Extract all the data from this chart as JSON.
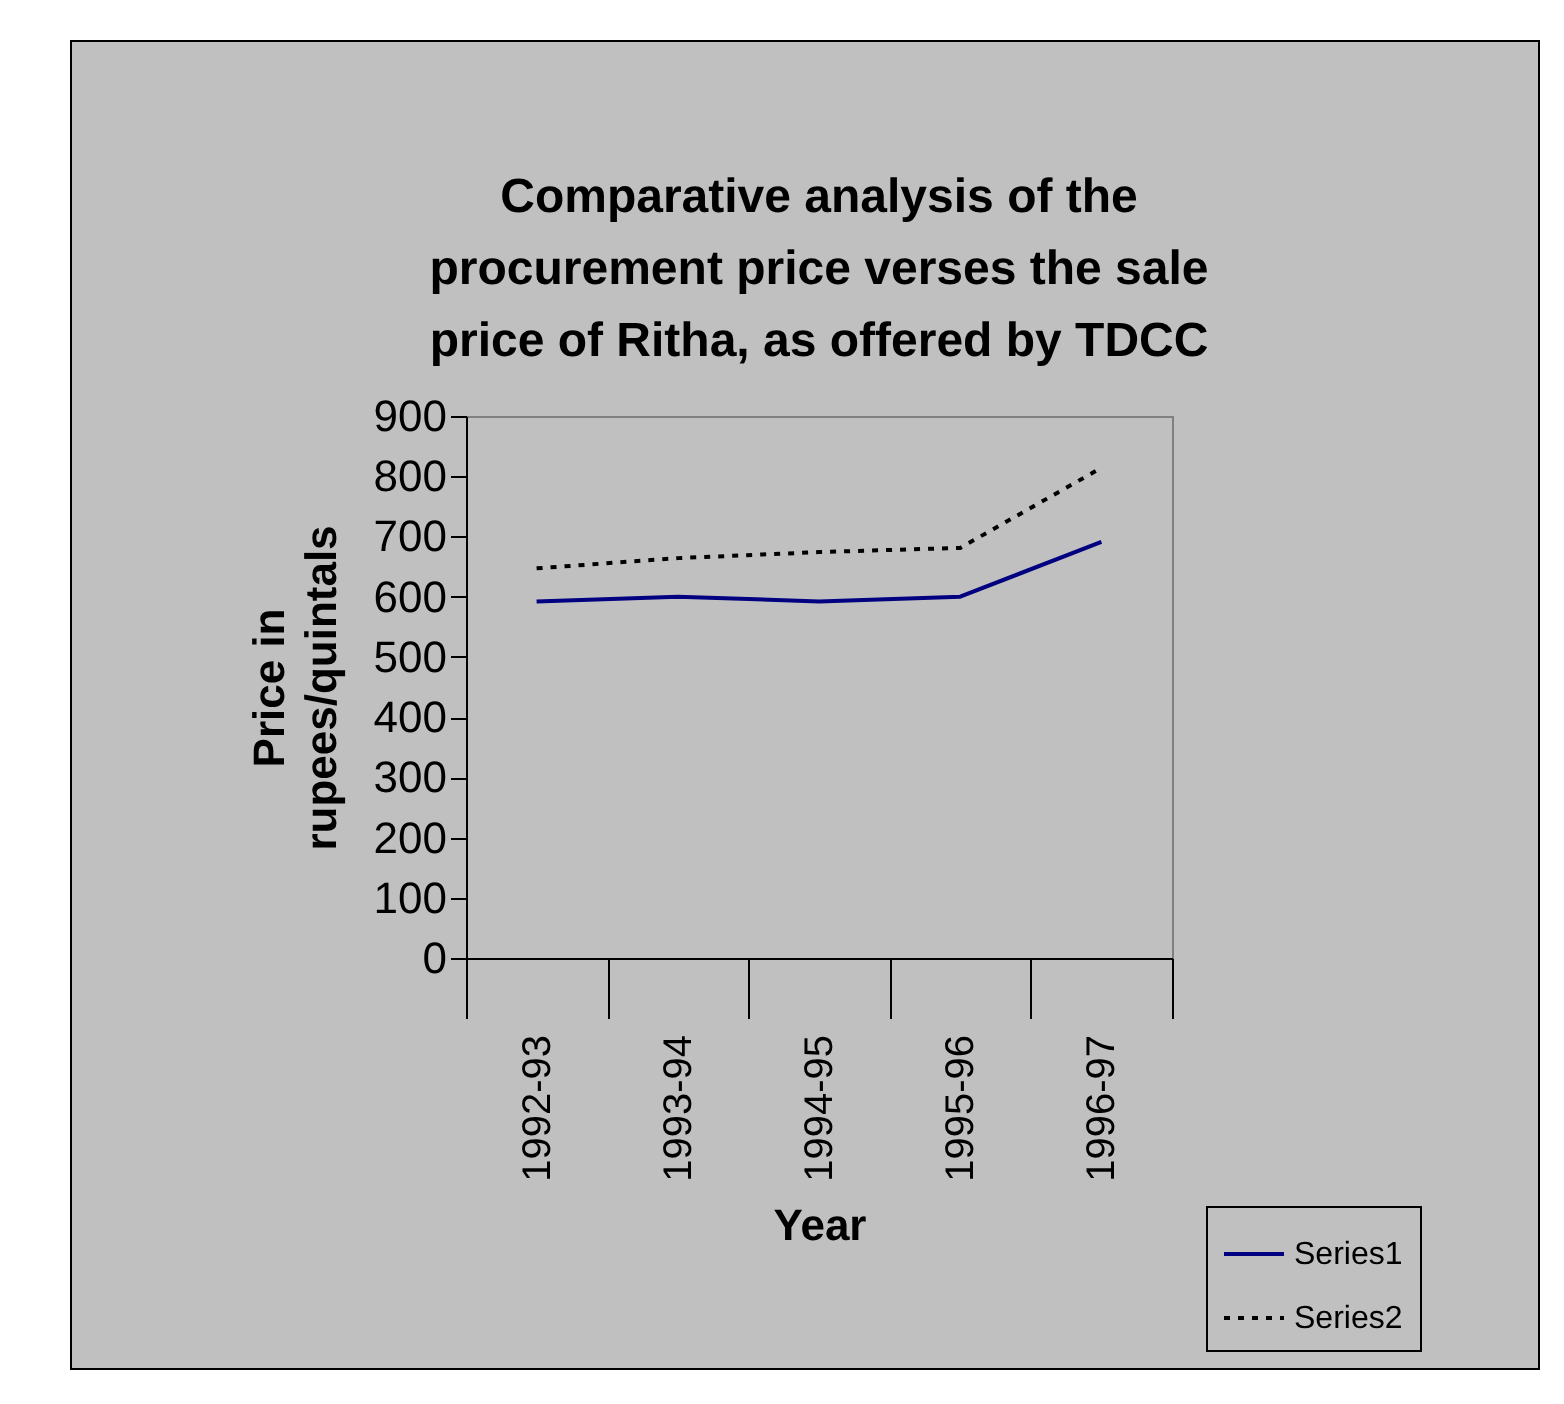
{
  "chart_data": {
    "type": "line",
    "title": "Comparative analysis of the procurement price verses the sale price of Ritha, as offered by TDCC",
    "xlabel": "Year",
    "ylabel": "Price in rupees/quintals",
    "categories": [
      "1992-93",
      "1993-94",
      "1994-95",
      "1995-96",
      "1996-97"
    ],
    "series": [
      {
        "name": "Series1",
        "color": "#000080",
        "line_style": "solid",
        "values": [
          592,
          600,
          592,
          600,
          691
        ]
      },
      {
        "name": "Series2",
        "color": "#000000",
        "line_style": "dotted",
        "values": [
          647,
          664,
          674,
          681,
          814
        ]
      }
    ],
    "ylim": [
      0,
      900
    ],
    "yticks": [
      0,
      100,
      200,
      300,
      400,
      500,
      600,
      700,
      800,
      900
    ],
    "grid": false,
    "legend": "bottom right",
    "marker": "none"
  }
}
